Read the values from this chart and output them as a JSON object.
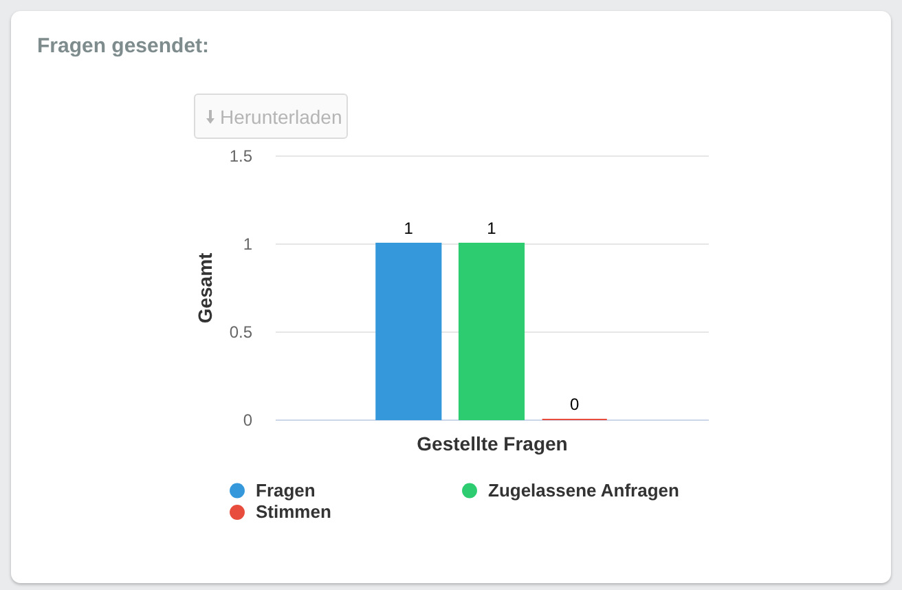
{
  "chart_data": {
    "type": "bar",
    "title": "Fragen gesendet:",
    "xlabel": "Gestellte Fragen",
    "ylabel": "Gesamt",
    "categories": [
      null
    ],
    "series": [
      {
        "name": "Fragen",
        "color": "#3498db",
        "values": [
          1
        ]
      },
      {
        "name": "Zugelassene Anfragen",
        "color": "#2ecc71",
        "values": [
          1
        ]
      },
      {
        "name": "Stimmen",
        "color": "#e74c3c",
        "values": [
          0
        ]
      }
    ],
    "ylim": [
      0,
      1.5
    ],
    "yticks": [
      0,
      0.5,
      1,
      1.5
    ],
    "grid": "y",
    "legend": "bottom",
    "data_labels": true,
    "tick_labels": "y",
    "annotations": [
      "Herunterladen"
    ]
  }
}
